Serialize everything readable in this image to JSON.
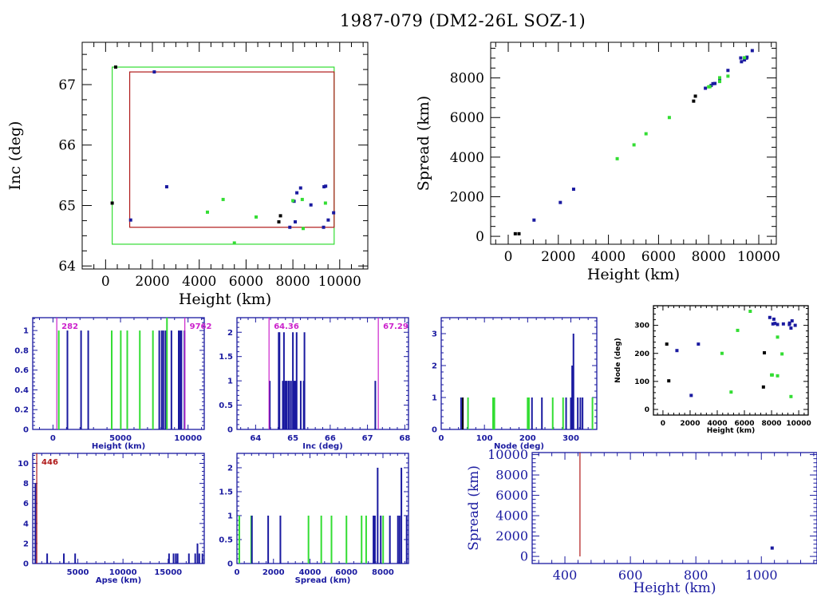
{
  "title": "1987-079 (DM2-26L SOZ-1)",
  "colors": {
    "black": "#000000",
    "blue": "#1a1aa0",
    "green": "#33dd33",
    "red": "#b01a1a",
    "magenta": "#cc22cc"
  },
  "chart_data": [
    {
      "id": "inc-vs-height",
      "type": "scatter",
      "title": "",
      "xlabel": "Height (km)",
      "ylabel": "Inc (deg)",
      "xlim": [
        -1000,
        11200
      ],
      "ylim": [
        63.95,
        67.7
      ],
      "xticks": [
        0,
        2000,
        4000,
        6000,
        8000,
        10000
      ],
      "yticks": [
        64,
        65,
        66,
        67
      ],
      "boxes": [
        {
          "name": "green-box",
          "color": "green",
          "x": [
            282,
            9762
          ],
          "y": [
            64.36,
            67.29
          ]
        },
        {
          "name": "red-box",
          "color": "red",
          "x": [
            1030,
            9762
          ],
          "y": [
            64.64,
            67.21
          ]
        }
      ],
      "series": [
        {
          "name": "black",
          "color": "black",
          "points": [
            [
              282,
              65.04
            ],
            [
              430,
              67.29
            ],
            [
              7400,
              64.73
            ],
            [
              7470,
              64.83
            ]
          ]
        },
        {
          "name": "blue",
          "color": "blue",
          "points": [
            [
              1070,
              64.76
            ],
            [
              2080,
              67.21
            ],
            [
              2610,
              65.31
            ],
            [
              7870,
              64.64
            ],
            [
              8050,
              65.07
            ],
            [
              8100,
              64.73
            ],
            [
              8170,
              65.21
            ],
            [
              8330,
              65.29
            ],
            [
              8770,
              65.01
            ],
            [
              9310,
              64.64
            ],
            [
              9330,
              65.31
            ],
            [
              9400,
              65.32
            ],
            [
              9510,
              64.76
            ],
            [
              9740,
              64.88
            ]
          ]
        },
        {
          "name": "green",
          "color": "green",
          "points": [
            [
              4350,
              64.89
            ],
            [
              5020,
              65.1
            ],
            [
              5500,
              64.38
            ],
            [
              6430,
              64.81
            ],
            [
              8000,
              65.08
            ],
            [
              8400,
              65.1
            ],
            [
              8440,
              64.62
            ],
            [
              9390,
              65.04
            ]
          ]
        }
      ]
    },
    {
      "id": "spread-vs-height",
      "type": "scatter",
      "xlabel": "Height (km)",
      "ylabel": "Spread (km)",
      "xlim": [
        -700,
        10700
      ],
      "ylim": [
        -400,
        9800
      ],
      "xticks": [
        0,
        2000,
        4000,
        6000,
        8000,
        10000
      ],
      "yticks": [
        0,
        2000,
        4000,
        6000,
        8000
      ],
      "series": [
        {
          "name": "black",
          "color": "black",
          "points": [
            [
              282,
              130
            ],
            [
              430,
              130
            ],
            [
              7400,
              6830
            ],
            [
              7470,
              7080
            ]
          ]
        },
        {
          "name": "blue",
          "color": "blue",
          "points": [
            [
              1030,
              820
            ],
            [
              2080,
              1710
            ],
            [
              2610,
              2380
            ],
            [
              7870,
              7480
            ],
            [
              8100,
              7620
            ],
            [
              8170,
              7710
            ],
            [
              8250,
              7720
            ],
            [
              8440,
              7880
            ],
            [
              8770,
              8380
            ],
            [
              9280,
              9010
            ],
            [
              9310,
              8820
            ],
            [
              9430,
              8910
            ],
            [
              9510,
              9000
            ],
            [
              9530,
              9050
            ],
            [
              9740,
              9380
            ]
          ]
        },
        {
          "name": "green",
          "color": "green",
          "points": [
            [
              4350,
              3920
            ],
            [
              5020,
              4620
            ],
            [
              5500,
              5180
            ],
            [
              6430,
              6000
            ],
            [
              8000,
              7550
            ],
            [
              8050,
              7560
            ],
            [
              8440,
              7820
            ],
            [
              8440,
              8010
            ],
            [
              8770,
              8090
            ],
            [
              9430,
              9020
            ]
          ]
        }
      ]
    },
    {
      "id": "height-histogram",
      "type": "bar",
      "xlabel": "Height (km)",
      "ylabel": "",
      "xlim": [
        -1500,
        11200
      ],
      "ylim": [
        0,
        1.13
      ],
      "xticks": [
        0,
        5000,
        10000
      ],
      "yticks": [
        0,
        0.2,
        0.4,
        0.6,
        0.8,
        1
      ],
      "markers": [
        {
          "value": 282,
          "label": "282",
          "color": "magenta"
        },
        {
          "value": 9762,
          "label": "9762",
          "color": "magenta"
        }
      ],
      "bars": [
        {
          "x": 430,
          "h": 1,
          "color": "green"
        },
        {
          "x": 1070,
          "h": 1,
          "color": "blue"
        },
        {
          "x": 2080,
          "h": 1,
          "color": "blue"
        },
        {
          "x": 2610,
          "h": 1,
          "color": "blue"
        },
        {
          "x": 4350,
          "h": 1,
          "color": "green"
        },
        {
          "x": 5020,
          "h": 1,
          "color": "green"
        },
        {
          "x": 5500,
          "h": 1,
          "color": "green"
        },
        {
          "x": 6430,
          "h": 1,
          "color": "green"
        },
        {
          "x": 7400,
          "h": 1,
          "color": "green"
        },
        {
          "x": 7870,
          "h": 1,
          "color": "blue"
        },
        {
          "x": 8050,
          "h": 1,
          "color": "blue"
        },
        {
          "x": 8170,
          "h": 1,
          "color": "blue"
        },
        {
          "x": 8330,
          "h": 1,
          "color": "blue"
        },
        {
          "x": 8440,
          "h": 1.13,
          "color": "green"
        },
        {
          "x": 8770,
          "h": 1,
          "color": "blue"
        },
        {
          "x": 9310,
          "h": 1,
          "color": "blue"
        },
        {
          "x": 9430,
          "h": 1,
          "color": "blue"
        },
        {
          "x": 9510,
          "h": 1,
          "color": "blue"
        },
        {
          "x": 9740,
          "h": 1,
          "color": "blue"
        }
      ]
    },
    {
      "id": "inc-histogram",
      "type": "bar",
      "xlabel": "Inc (deg)",
      "xlim": [
        63.5,
        68.1
      ],
      "ylim": [
        0,
        2.3
      ],
      "xticks": [
        64,
        65,
        66,
        67,
        68
      ],
      "yticks": [
        0,
        0.5,
        1,
        1.5,
        2
      ],
      "markers": [
        {
          "value": 64.36,
          "label": "64.36",
          "color": "magenta"
        },
        {
          "value": 67.29,
          "label": "67.29",
          "color": "magenta"
        }
      ],
      "bars": [
        {
          "x": 64.38,
          "h": 1,
          "color": "blue"
        },
        {
          "x": 64.62,
          "h": 2,
          "color": "blue"
        },
        {
          "x": 64.64,
          "h": 2,
          "color": "blue"
        },
        {
          "x": 64.73,
          "h": 1,
          "color": "blue"
        },
        {
          "x": 64.76,
          "h": 2,
          "color": "blue"
        },
        {
          "x": 64.8,
          "h": 1,
          "color": "blue"
        },
        {
          "x": 64.83,
          "h": 1,
          "color": "blue"
        },
        {
          "x": 64.88,
          "h": 1,
          "color": "blue"
        },
        {
          "x": 64.9,
          "h": 1,
          "color": "blue"
        },
        {
          "x": 64.95,
          "h": 1,
          "color": "blue"
        },
        {
          "x": 65.0,
          "h": 2,
          "color": "blue"
        },
        {
          "x": 65.04,
          "h": 1,
          "color": "blue"
        },
        {
          "x": 65.07,
          "h": 1,
          "color": "blue"
        },
        {
          "x": 65.1,
          "h": 2,
          "color": "blue"
        },
        {
          "x": 65.21,
          "h": 1,
          "color": "blue"
        },
        {
          "x": 65.29,
          "h": 1,
          "color": "blue"
        },
        {
          "x": 65.31,
          "h": 2,
          "color": "blue"
        },
        {
          "x": 67.21,
          "h": 1,
          "color": "blue"
        }
      ]
    },
    {
      "id": "node-histogram",
      "type": "bar",
      "xlabel": "Node (deg)",
      "xlim": [
        0,
        360
      ],
      "ylim": [
        0,
        3.5
      ],
      "xticks": [
        0,
        100,
        200,
        300
      ],
      "yticks": [
        0,
        1,
        2,
        3
      ],
      "bars": [
        {
          "x": 46,
          "h": 1,
          "color": "blue"
        },
        {
          "x": 50,
          "h": 1,
          "color": "black"
        },
        {
          "x": 62,
          "h": 1,
          "color": "green"
        },
        {
          "x": 120,
          "h": 1,
          "color": "green"
        },
        {
          "x": 123,
          "h": 1,
          "color": "green"
        },
        {
          "x": 200,
          "h": 1,
          "color": "green"
        },
        {
          "x": 203,
          "h": 1,
          "color": "green"
        },
        {
          "x": 210,
          "h": 1,
          "color": "blue"
        },
        {
          "x": 233,
          "h": 1,
          "color": "blue"
        },
        {
          "x": 258,
          "h": 1,
          "color": "green"
        },
        {
          "x": 282,
          "h": 1,
          "color": "green"
        },
        {
          "x": 289,
          "h": 1,
          "color": "blue"
        },
        {
          "x": 300,
          "h": 1,
          "color": "blue"
        },
        {
          "x": 303,
          "h": 2,
          "color": "blue"
        },
        {
          "x": 306,
          "h": 3,
          "color": "blue"
        },
        {
          "x": 316,
          "h": 1,
          "color": "blue"
        },
        {
          "x": 322,
          "h": 1,
          "color": "blue"
        },
        {
          "x": 327,
          "h": 1,
          "color": "blue"
        },
        {
          "x": 350,
          "h": 1,
          "color": "green"
        }
      ]
    },
    {
      "id": "node-vs-height",
      "type": "scatter",
      "xlabel": "Height (km)",
      "ylabel": "Node (deg)",
      "xlim": [
        -700,
        10700
      ],
      "ylim": [
        -20,
        370
      ],
      "xticks": [
        0,
        2000,
        4000,
        6000,
        8000,
        10000
      ],
      "yticks": [
        0,
        100,
        200,
        300
      ],
      "series": [
        {
          "name": "black",
          "color": "black",
          "points": [
            [
              282,
              233
            ],
            [
              430,
              102
            ],
            [
              7400,
              80
            ],
            [
              7470,
              202
            ]
          ]
        },
        {
          "name": "blue",
          "color": "blue",
          "points": [
            [
              1030,
              210
            ],
            [
              2080,
              50
            ],
            [
              2610,
              233
            ],
            [
              7870,
              328
            ],
            [
              8100,
              305
            ],
            [
              8170,
              322
            ],
            [
              8250,
              307
            ],
            [
              8440,
              303
            ],
            [
              8870,
              305
            ],
            [
              9310,
              303
            ],
            [
              9330,
              308
            ],
            [
              9430,
              290
            ],
            [
              9510,
              316
            ],
            [
              9740,
              300
            ]
          ]
        },
        {
          "name": "green",
          "color": "green",
          "points": [
            [
              4350,
              200
            ],
            [
              5020,
              62
            ],
            [
              5500,
              282
            ],
            [
              6430,
              350
            ],
            [
              8000,
              123
            ],
            [
              8050,
              123
            ],
            [
              8440,
              120
            ],
            [
              8440,
              258
            ],
            [
              8770,
              198
            ],
            [
              9430,
              46
            ]
          ]
        }
      ]
    },
    {
      "id": "apse-histogram",
      "type": "bar",
      "xlabel": "Apse (km)",
      "xlim": [
        0,
        19000
      ],
      "ylim": [
        0,
        11
      ],
      "xticks": [
        5000,
        10000,
        15000
      ],
      "yticks": [
        0,
        2,
        4,
        6,
        8,
        10
      ],
      "markers": [
        {
          "value": 446,
          "label": "446",
          "color": "red"
        }
      ],
      "bars": [
        {
          "x": 300,
          "h": 8,
          "color": "blue"
        },
        {
          "x": 1600,
          "h": 1,
          "color": "blue"
        },
        {
          "x": 3450,
          "h": 1,
          "color": "blue"
        },
        {
          "x": 4700,
          "h": 1,
          "color": "blue"
        },
        {
          "x": 15100,
          "h": 1,
          "color": "blue"
        },
        {
          "x": 15600,
          "h": 1,
          "color": "blue"
        },
        {
          "x": 15850,
          "h": 1,
          "color": "blue"
        },
        {
          "x": 16050,
          "h": 1,
          "color": "blue"
        },
        {
          "x": 17300,
          "h": 1,
          "color": "blue"
        },
        {
          "x": 18000,
          "h": 1,
          "color": "blue"
        },
        {
          "x": 18250,
          "h": 2,
          "color": "blue"
        },
        {
          "x": 18450,
          "h": 1,
          "color": "blue"
        },
        {
          "x": 18800,
          "h": 1,
          "color": "blue"
        }
      ]
    },
    {
      "id": "spread-histogram",
      "type": "bar",
      "xlabel": "Spread (km)",
      "xlim": [
        0,
        9400
      ],
      "ylim": [
        0,
        2.3
      ],
      "xticks": [
        0,
        2000,
        4000,
        6000,
        8000
      ],
      "yticks": [
        0,
        0.5,
        1,
        1.5,
        2
      ],
      "bars": [
        {
          "x": 130,
          "h": 1,
          "color": "green"
        },
        {
          "x": 780,
          "h": 1,
          "color": "green"
        },
        {
          "x": 820,
          "h": 1,
          "color": "blue"
        },
        {
          "x": 1710,
          "h": 1,
          "color": "blue"
        },
        {
          "x": 2380,
          "h": 1,
          "color": "blue"
        },
        {
          "x": 3920,
          "h": 1,
          "color": "green"
        },
        {
          "x": 4620,
          "h": 1,
          "color": "green"
        },
        {
          "x": 5180,
          "h": 1,
          "color": "green"
        },
        {
          "x": 6000,
          "h": 1,
          "color": "green"
        },
        {
          "x": 6830,
          "h": 1,
          "color": "green"
        },
        {
          "x": 7080,
          "h": 1,
          "color": "green"
        },
        {
          "x": 7480,
          "h": 1,
          "color": "blue"
        },
        {
          "x": 7560,
          "h": 1,
          "color": "blue"
        },
        {
          "x": 7710,
          "h": 2,
          "color": "blue"
        },
        {
          "x": 7880,
          "h": 1,
          "color": "blue"
        },
        {
          "x": 8010,
          "h": 1,
          "color": "green"
        },
        {
          "x": 8380,
          "h": 1,
          "color": "blue"
        },
        {
          "x": 8820,
          "h": 1,
          "color": "blue"
        },
        {
          "x": 8910,
          "h": 1,
          "color": "blue"
        },
        {
          "x": 9010,
          "h": 2,
          "color": "blue"
        },
        {
          "x": 9300,
          "h": 1,
          "color": "blue"
        }
      ]
    },
    {
      "id": "spread-vs-height-zoom",
      "type": "scatter",
      "xlabel": "Height (km)",
      "ylabel": "Spread (km)",
      "xlim": [
        300,
        1170
      ],
      "ylim": [
        -700,
        10200
      ],
      "xticks": [
        400,
        600,
        800,
        1000
      ],
      "yticks": [
        0,
        2000,
        4000,
        6000,
        8000,
        10000
      ],
      "markers": [
        {
          "value": 446,
          "label": "",
          "color": "red"
        }
      ],
      "series": [
        {
          "name": "blue",
          "color": "blue",
          "points": [
            [
              1033,
              820
            ]
          ]
        }
      ]
    }
  ]
}
